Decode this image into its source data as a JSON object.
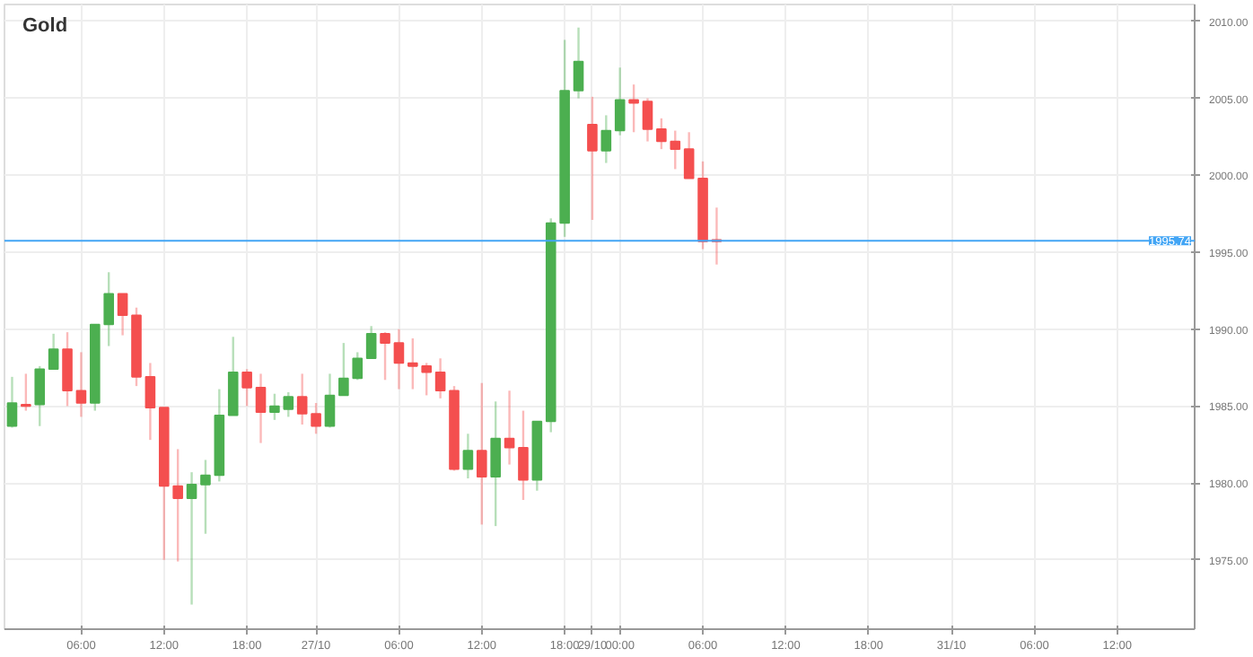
{
  "chart_data": {
    "type": "candlestick",
    "title": "Gold",
    "categories": [
      null,
      null,
      null,
      null,
      null,
      "06:00",
      null,
      null,
      null,
      null,
      null,
      "12:00",
      null,
      null,
      null,
      null,
      null,
      "18:00",
      null,
      null,
      null,
      null,
      "27/10",
      null,
      null,
      null,
      null,
      null,
      "06:00",
      null,
      null,
      null,
      null,
      null,
      "12:00",
      null,
      null,
      null,
      null,
      null,
      "18:00",
      null,
      "29/10",
      null,
      "00:00",
      null,
      null,
      null,
      null,
      null,
      "06:00",
      null,
      null,
      null,
      null,
      null,
      "12:00",
      null,
      null,
      null,
      null,
      null,
      "18:00",
      null,
      null,
      null,
      null,
      null,
      "31/10",
      null,
      null,
      null,
      null,
      null,
      "06:00",
      null,
      null,
      null,
      null,
      null,
      "12:00",
      null,
      null,
      null,
      null,
      null
    ],
    "ohlc": [
      [
        1983.7,
        1986.9,
        1983.6,
        1985.2
      ],
      [
        1985.1,
        1987.1,
        1984.7,
        1985.0
      ],
      [
        1985.1,
        1987.6,
        1983.7,
        1987.4
      ],
      [
        1987.4,
        1989.7,
        1987.4,
        1988.7
      ],
      [
        1988.7,
        1989.8,
        1985.0,
        1986.0
      ],
      [
        1986.0,
        1988.5,
        1984.3,
        1985.2
      ],
      [
        1985.2,
        1990.3,
        1984.7,
        1990.3
      ],
      [
        1990.3,
        1993.7,
        1988.9,
        1992.3
      ],
      [
        1992.3,
        1992.3,
        1989.6,
        1990.9
      ],
      [
        1990.9,
        1991.4,
        1986.3,
        1986.9
      ],
      [
        1986.9,
        1987.8,
        1982.8,
        1984.9
      ],
      [
        1984.9,
        1984.9,
        1975.0,
        1979.8
      ],
      [
        1979.8,
        1982.2,
        1974.9,
        1979.0
      ],
      [
        1979.0,
        1980.7,
        1972.1,
        1979.9
      ],
      [
        1979.9,
        1981.5,
        1976.7,
        1980.5
      ],
      [
        1980.5,
        1986.1,
        1980.1,
        1984.4
      ],
      [
        1984.4,
        1989.5,
        1984.4,
        1987.2
      ],
      [
        1987.2,
        1987.4,
        1985.0,
        1986.2
      ],
      [
        1986.2,
        1987.1,
        1982.6,
        1984.6
      ],
      [
        1984.6,
        1985.8,
        1984.1,
        1985.0
      ],
      [
        1984.8,
        1985.9,
        1984.3,
        1985.6
      ],
      [
        1985.6,
        1987.1,
        1983.8,
        1984.5
      ],
      [
        1984.5,
        1985.2,
        1983.2,
        1983.7
      ],
      [
        1983.7,
        1987.1,
        1983.6,
        1985.7
      ],
      [
        1985.7,
        1989.1,
        1985.7,
        1986.8
      ],
      [
        1986.8,
        1988.5,
        1986.7,
        1988.1
      ],
      [
        1988.1,
        1990.2,
        1988.1,
        1989.7
      ],
      [
        1989.7,
        1989.8,
        1986.7,
        1989.1
      ],
      [
        1989.1,
        1990.0,
        1986.1,
        1987.8
      ],
      [
        1987.8,
        1989.4,
        1986.1,
        1987.6
      ],
      [
        1987.6,
        1987.8,
        1985.7,
        1987.2
      ],
      [
        1987.2,
        1988.1,
        1985.5,
        1986.0
      ],
      [
        1986.0,
        1986.3,
        1980.8,
        1980.9
      ],
      [
        1980.9,
        1983.2,
        1980.3,
        1982.1
      ],
      [
        1982.1,
        1986.5,
        1977.3,
        1980.4
      ],
      [
        1980.4,
        1985.3,
        1977.2,
        1982.9
      ],
      [
        1982.9,
        1986.0,
        1981.2,
        1982.3
      ],
      [
        1982.3,
        1984.7,
        1978.9,
        1980.2
      ],
      [
        1980.2,
        1984.0,
        1979.5,
        1984.0
      ],
      [
        1984.0,
        1997.2,
        1983.3,
        1996.9
      ],
      [
        1996.9,
        2008.8,
        1996.0,
        2005.5
      ],
      [
        2005.5,
        2009.6,
        2005.0,
        2007.4
      ],
      [
        2003.3,
        2005.1,
        1997.1,
        2001.6
      ],
      [
        2001.6,
        2003.9,
        2000.8,
        2002.9
      ],
      [
        2002.9,
        2007.0,
        2002.6,
        2004.9
      ],
      [
        2004.9,
        2005.9,
        2002.8,
        2004.7
      ],
      [
        2004.8,
        2005.0,
        2002.2,
        2003.0
      ],
      [
        2003.0,
        2003.7,
        2001.7,
        2002.2
      ],
      [
        2002.2,
        2002.9,
        2000.4,
        2001.7
      ],
      [
        2001.7,
        2002.8,
        1999.8,
        1999.8
      ],
      [
        1999.8,
        2000.9,
        1995.2,
        1995.7
      ],
      [
        1995.8,
        1997.9,
        1994.2,
        1995.7
      ],
      null,
      null,
      null,
      null,
      null,
      null,
      null,
      null,
      null,
      null,
      null,
      null,
      null,
      null,
      null,
      null,
      null,
      null,
      null,
      null,
      null,
      null,
      null,
      null,
      null,
      null,
      null,
      null,
      null,
      null,
      null,
      null,
      null,
      null
    ],
    "colors": [
      "#4caf50",
      "#f44f4f",
      "#4caf50",
      "#4caf50",
      "#f44f4f",
      "#f44f4f",
      "#4caf50",
      "#4caf50",
      "#f44f4f",
      "#f44f4f",
      "#f44f4f",
      "#f44f4f",
      "#f44f4f",
      "#4caf50",
      "#4caf50",
      "#4caf50",
      "#4caf50",
      "#f44f4f",
      "#f44f4f",
      "#4caf50",
      "#4caf50",
      "#f44f4f",
      "#f44f4f",
      "#4caf50",
      "#4caf50",
      "#4caf50",
      "#4caf50",
      "#f44f4f",
      "#f44f4f",
      "#f44f4f",
      "#f44f4f",
      "#f44f4f",
      "#f44f4f",
      "#4caf50",
      "#f44f4f",
      "#4caf50",
      "#f44f4f",
      "#f44f4f",
      "#4caf50",
      "#4caf50",
      "#4caf50",
      "#4caf50",
      "#f44f4f",
      "#4caf50",
      "#4caf50",
      "#f44f4f",
      "#f44f4f",
      "#f44f4f",
      "#f44f4f",
      "#f44f4f",
      "#f44f4f",
      "#f44f4f",
      null,
      null,
      null,
      null,
      null,
      null,
      null,
      null,
      null,
      null,
      null,
      null,
      null,
      null,
      null,
      null,
      null,
      null,
      null,
      null,
      null,
      null,
      null,
      null,
      null,
      null,
      null,
      null,
      null,
      null,
      null,
      null,
      null,
      null
    ],
    "ylim": [
      1970.5,
      2011.1
    ],
    "yticks": [
      {
        "value": 1975,
        "label": "1975.00"
      },
      {
        "value": 1980,
        "label": "1980.00"
      },
      {
        "value": 1985,
        "label": "1985.00"
      },
      {
        "value": 1990,
        "label": "1990.00"
      },
      {
        "value": 1995,
        "label": "1995.00"
      },
      {
        "value": 2000,
        "label": "2000.00"
      },
      {
        "value": 2005,
        "label": "2005.00"
      },
      {
        "value": 2010,
        "label": "2010.00"
      }
    ],
    "grid": true,
    "ref_lines": [
      {
        "axis": "y",
        "value": 1995.74,
        "label": "1995.74",
        "color": "#42a5f5"
      }
    ]
  }
}
